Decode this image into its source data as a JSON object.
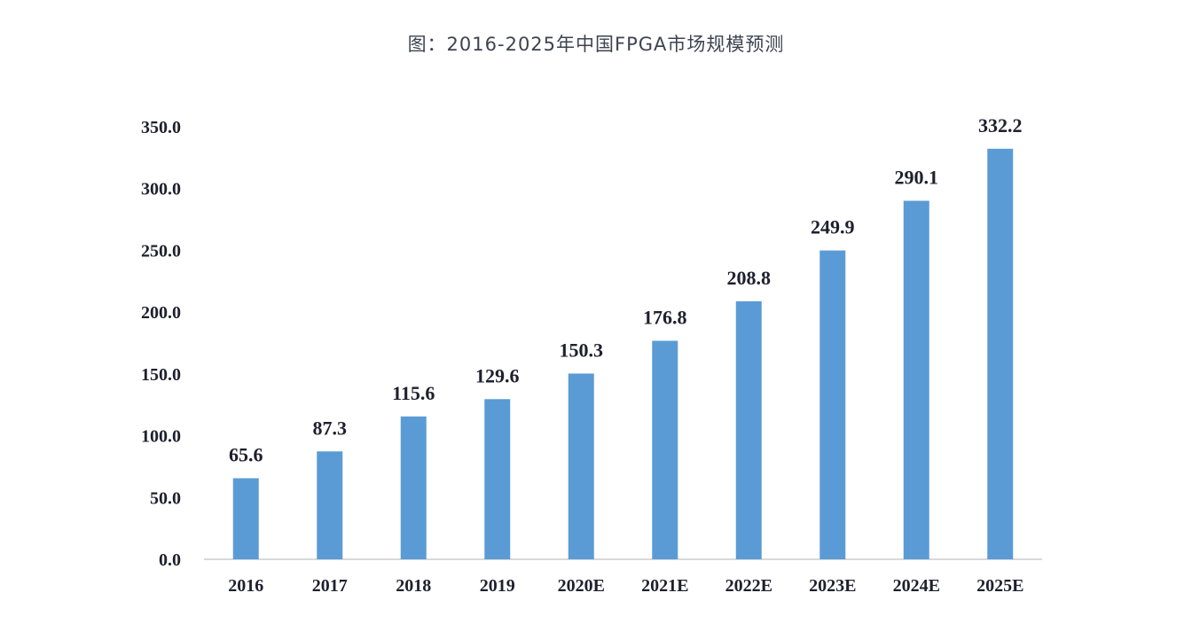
{
  "chart_data": {
    "type": "bar",
    "title": "图：2016-2025年中国FPGA市场规模预测",
    "xlabel": "",
    "ylabel": "",
    "categories": [
      "2016",
      "2017",
      "2018",
      "2019",
      "2020E",
      "2021E",
      "2022E",
      "2023E",
      "2024E",
      "2025E"
    ],
    "values": [
      65.6,
      87.3,
      115.6,
      129.6,
      150.3,
      176.8,
      208.8,
      249.9,
      290.1,
      332.2
    ],
    "value_labels": [
      "65.6",
      "87.3",
      "115.6",
      "129.6",
      "150.3",
      "176.8",
      "208.8",
      "249.9",
      "290.1",
      "332.2"
    ],
    "ylim": [
      0,
      350
    ],
    "yticks": [
      "0.0",
      "50.0",
      "100.0",
      "150.0",
      "200.0",
      "250.0",
      "300.0",
      "350.0"
    ],
    "bar_color": "#5b9bd5",
    "grid": false,
    "legend": "none"
  }
}
